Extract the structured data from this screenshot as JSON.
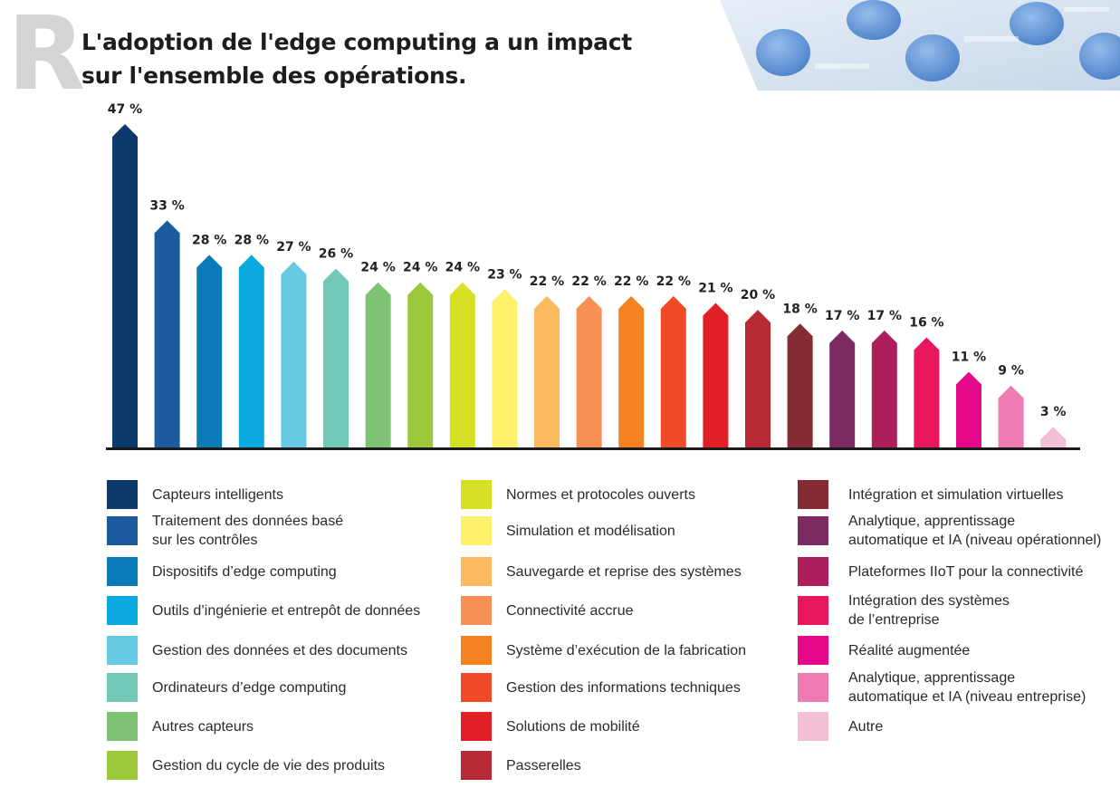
{
  "header": {
    "watermark_letter": "R",
    "title": "L'adoption de l'edge computing a un impact sur l'ensemble des opérations."
  },
  "chart_data": {
    "type": "bar",
    "title": "L'adoption de l'edge computing a un impact sur l'ensemble des opérations.",
    "xlabel": "",
    "ylabel": "",
    "ylim": [
      0,
      47
    ],
    "grid": false,
    "legend_position": "bottom",
    "value_suffix": " %",
    "categories": [
      "Capteurs intelligents",
      "Traitement des données basé sur les contrôles",
      "Dispositifs d’edge computing",
      "Outils d’ingénierie et entrepôt de données",
      "Gestion des données et des documents",
      "Ordinateurs d’edge computing",
      "Autres capteurs",
      "Gestion du cycle de vie des produits",
      "Normes et protocoles ouverts",
      "Simulation et modélisation",
      "Sauvegarde et reprise des systèmes",
      "Connectivité accrue",
      "Système d’exécution de la fabrication",
      "Gestion des informations techniques",
      "Solutions de mobilité",
      "Passerelles",
      "Intégration et simulation virtuelles",
      "Analytique, apprentissage automatique et IA (niveau opérationnel)",
      "Plateformes IIoT pour la connectivité",
      "Intégration des systèmes de l’entreprise",
      "Réalité augmentée",
      "Analytique, apprentissage automatique et IA (niveau entreprise)",
      "Autre"
    ],
    "values": [
      47,
      33,
      28,
      28,
      27,
      26,
      24,
      24,
      24,
      23,
      22,
      22,
      22,
      22,
      21,
      20,
      18,
      17,
      17,
      16,
      11,
      9,
      3
    ],
    "labels": [
      "47 %",
      "33 %",
      "28 %",
      "28 %",
      "27 %",
      "26 %",
      "24 %",
      "24 %",
      "24 %",
      "23 %",
      "22 %",
      "22 %",
      "22 %",
      "22 %",
      "21 %",
      "20 %",
      "18 %",
      "17 %",
      "17 %",
      "16 %",
      "11 %",
      "9 %",
      "3 %"
    ],
    "colors": [
      "#0e3a6b",
      "#1b5a9c",
      "#0a7bb7",
      "#0aa9df",
      "#67cae4",
      "#72c8b7",
      "#7fc273",
      "#9bc83b",
      "#d8e024",
      "#fdf16a",
      "#fdb95d",
      "#f79052",
      "#f58220",
      "#ef4b26",
      "#e21f26",
      "#b82a33",
      "#842b34",
      "#7e2a62",
      "#ad1f5c",
      "#e8175d",
      "#e6088a",
      "#ef7bb3",
      "#f4bfd6"
    ]
  },
  "legend": {
    "columns": [
      {
        "items": [
          {
            "label_lines": [
              "Capteurs intelligents"
            ],
            "color": "#0e3a6b"
          },
          {
            "label_lines": [
              "Traitement des données basé",
              "sur les contrôles"
            ],
            "color": "#1b5a9c"
          },
          {
            "label_lines": [
              "Dispositifs d’edge computing"
            ],
            "color": "#0a7bb7"
          },
          {
            "label_lines": [
              "Outils d’ingénierie et entrepôt de données"
            ],
            "color": "#0aa9df"
          },
          {
            "label_lines": [
              "Gestion des données et des documents"
            ],
            "color": "#67cae4"
          },
          {
            "label_lines": [
              "Ordinateurs d’edge computing"
            ],
            "color": "#72c8b7"
          },
          {
            "label_lines": [
              "Autres capteurs"
            ],
            "color": "#7fc273"
          },
          {
            "label_lines": [
              "Gestion du cycle de vie des produits"
            ],
            "color": "#9bc83b"
          }
        ]
      },
      {
        "items": [
          {
            "label_lines": [
              "Normes et protocoles ouverts"
            ],
            "color": "#d8e024"
          },
          {
            "label_lines": [
              "Simulation et modélisation"
            ],
            "color": "#fdf16a"
          },
          {
            "label_lines": [
              "Sauvegarde et reprise des systèmes"
            ],
            "color": "#fdb95d"
          },
          {
            "label_lines": [
              "Connectivité accrue"
            ],
            "color": "#f79052"
          },
          {
            "label_lines": [
              "Système d’exécution de la fabrication"
            ],
            "color": "#f58220"
          },
          {
            "label_lines": [
              "Gestion des informations techniques"
            ],
            "color": "#ef4b26"
          },
          {
            "label_lines": [
              "Solutions de mobilité"
            ],
            "color": "#e21f26"
          },
          {
            "label_lines": [
              "Passerelles"
            ],
            "color": "#b82a33"
          }
        ]
      },
      {
        "items": [
          {
            "label_lines": [
              "Intégration et simulation virtuelles"
            ],
            "color": "#842b34"
          },
          {
            "label_lines": [
              "Analytique, apprentissage",
              "automatique et IA (niveau opérationnel)"
            ],
            "color": "#7e2a62"
          },
          {
            "label_lines": [
              "Plateformes IIoT pour la connectivité"
            ],
            "color": "#ad1f5c"
          },
          {
            "label_lines": [
              "Intégration des systèmes",
              "de l’entreprise"
            ],
            "color": "#e8175d"
          },
          {
            "label_lines": [
              "Réalité augmentée"
            ],
            "color": "#e6088a"
          },
          {
            "label_lines": [
              "Analytique, apprentissage",
              "automatique et IA (niveau entreprise)"
            ],
            "color": "#ef7bb3"
          },
          {
            "label_lines": [
              "Autre"
            ],
            "color": "#f4bfd6"
          }
        ]
      }
    ]
  }
}
